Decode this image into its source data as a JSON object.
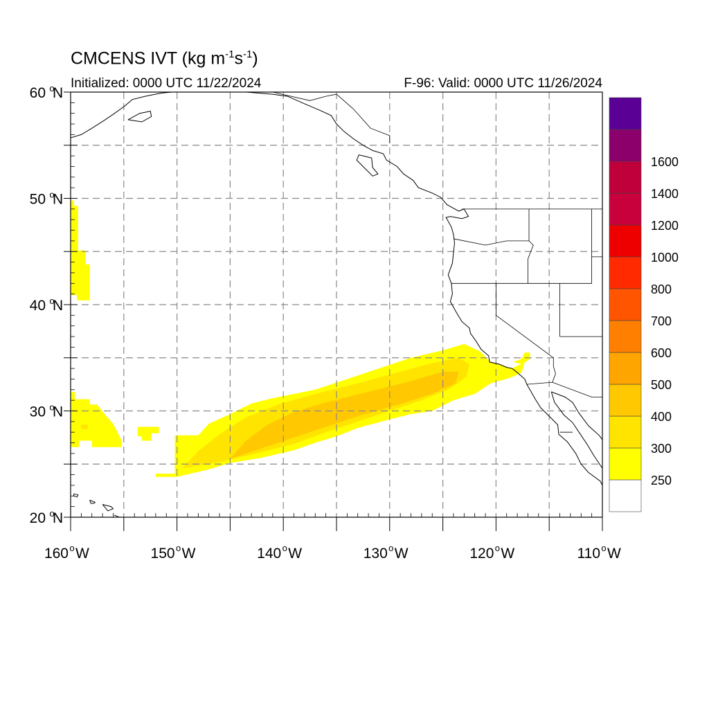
{
  "title_main": "CMCENS IVT (kg m",
  "title_exp1": "-1",
  "title_mid": "s",
  "title_exp2": "-1",
  "title_end": ")",
  "initialized": "Initialized: 0000 UTC 11/22/2024",
  "valid": "F-96: Valid: 0000 UTC 11/26/2024",
  "lat_labels": [
    {
      "deg": "60",
      "hem": "N"
    },
    {
      "deg": "50",
      "hem": "N"
    },
    {
      "deg": "40",
      "hem": "N"
    },
    {
      "deg": "30",
      "hem": "N"
    },
    {
      "deg": "20",
      "hem": "N"
    }
  ],
  "lon_labels": [
    {
      "deg": "160",
      "hem": "W"
    },
    {
      "deg": "150",
      "hem": "W"
    },
    {
      "deg": "140",
      "hem": "W"
    },
    {
      "deg": "130",
      "hem": "W"
    },
    {
      "deg": "120",
      "hem": "W"
    },
    {
      "deg": "110",
      "hem": "W"
    }
  ],
  "map_extent": {
    "lon_min": -160,
    "lon_max": -110,
    "lat_min": 20,
    "lat_max": 60
  },
  "grid": {
    "lon_step": 5,
    "lat_step": 5,
    "style": "dashed"
  },
  "colorbar": {
    "bins": [
      {
        "color": "#ffffff"
      },
      {
        "color": "#ffff00",
        "label": "250"
      },
      {
        "color": "#ffe400",
        "label": "300"
      },
      {
        "color": "#ffc800",
        "label": "400"
      },
      {
        "color": "#ffa500",
        "label": "500"
      },
      {
        "color": "#ff8000",
        "label": "600"
      },
      {
        "color": "#ff5500",
        "label": "700"
      },
      {
        "color": "#ff2a00",
        "label": "800"
      },
      {
        "color": "#ee0000",
        "label": "1000"
      },
      {
        "color": "#c8003c",
        "label": "1200"
      },
      {
        "color": "#c0003a",
        "label": "1400"
      },
      {
        "color": "#8b006b",
        "label": "1600"
      },
      {
        "color": "#5b0095"
      }
    ]
  },
  "ivt_regions": [
    {
      "name": "atmospheric-river-250",
      "level": 250,
      "color": "#ffff00",
      "polygon": [
        [
          -152.0,
          24.1
        ],
        [
          -150.2,
          24.1
        ],
        [
          -150.2,
          27.7
        ],
        [
          -148.0,
          27.7
        ],
        [
          -147.0,
          28.8
        ],
        [
          -145.0,
          29.7
        ],
        [
          -143.0,
          30.7
        ],
        [
          -141.0,
          31.2
        ],
        [
          -137.0,
          32.0
        ],
        [
          -134.0,
          33.0
        ],
        [
          -131.0,
          34.0
        ],
        [
          -128.0,
          35.0
        ],
        [
          -125.0,
          35.7
        ],
        [
          -123.0,
          36.3
        ],
        [
          -121.5,
          35.6
        ],
        [
          -120.5,
          34.6
        ],
        [
          -118.5,
          34.0
        ],
        [
          -117.3,
          34.6
        ],
        [
          -117.6,
          33.6
        ],
        [
          -118.7,
          33.1
        ],
        [
          -120.5,
          32.6
        ],
        [
          -122.0,
          31.6
        ],
        [
          -124.0,
          31.0
        ],
        [
          -126.0,
          30.0
        ],
        [
          -128.0,
          29.7
        ],
        [
          -130.0,
          29.2
        ],
        [
          -133.0,
          28.4
        ],
        [
          -135.0,
          27.6
        ],
        [
          -137.0,
          27.0
        ],
        [
          -139.0,
          26.3
        ],
        [
          -142.0,
          25.6
        ],
        [
          -145.0,
          25.1
        ],
        [
          -147.0,
          24.5
        ],
        [
          -150.0,
          23.8
        ],
        [
          -152.0,
          23.8
        ]
      ]
    },
    {
      "name": "atmospheric-river-300",
      "level": 300,
      "color": "#ffe400",
      "polygon": [
        [
          -149.5,
          24.6
        ],
        [
          -148.0,
          26.2
        ],
        [
          -146.0,
          27.8
        ],
        [
          -143.5,
          29.4
        ],
        [
          -140.5,
          30.6
        ],
        [
          -137.0,
          31.6
        ],
        [
          -133.0,
          32.6
        ],
        [
          -129.0,
          33.7
        ],
        [
          -126.0,
          34.5
        ],
        [
          -123.5,
          35.0
        ],
        [
          -122.5,
          34.4
        ],
        [
          -122.8,
          33.2
        ],
        [
          -124.5,
          32.0
        ],
        [
          -127.0,
          31.0
        ],
        [
          -130.0,
          30.0
        ],
        [
          -133.0,
          29.0
        ],
        [
          -136.0,
          28.0
        ],
        [
          -139.0,
          26.9
        ],
        [
          -142.5,
          26.0
        ],
        [
          -146.0,
          25.2
        ],
        [
          -149.5,
          24.6
        ]
      ]
    },
    {
      "name": "atmospheric-river-400",
      "level": 400,
      "color": "#ffc800",
      "polygon": [
        [
          -145.0,
          25.5
        ],
        [
          -143.5,
          27.2
        ],
        [
          -141.5,
          28.7
        ],
        [
          -139.0,
          29.9
        ],
        [
          -136.0,
          30.8
        ],
        [
          -132.0,
          31.8
        ],
        [
          -128.0,
          32.8
        ],
        [
          -125.0,
          33.7
        ],
        [
          -123.5,
          33.7
        ],
        [
          -123.8,
          32.6
        ],
        [
          -126.0,
          31.6
        ],
        [
          -129.5,
          30.5
        ],
        [
          -133.0,
          29.5
        ],
        [
          -136.0,
          28.5
        ],
        [
          -139.0,
          27.5
        ],
        [
          -142.0,
          26.5
        ],
        [
          -145.0,
          25.5
        ]
      ]
    },
    {
      "name": "coastal-patch-250",
      "level": 250,
      "color": "#ffff00",
      "polygon": [
        [
          -118.4,
          34.6
        ],
        [
          -117.6,
          34.9
        ],
        [
          -117.3,
          35.5
        ],
        [
          -116.8,
          35.5
        ],
        [
          -116.8,
          34.9
        ],
        [
          -117.5,
          34.4
        ],
        [
          -118.4,
          34.6
        ]
      ]
    },
    {
      "name": "north-patch-250",
      "level": 250,
      "color": "#ffff00",
      "polygon": [
        [
          -160.0,
          40.9
        ],
        [
          -159.4,
          40.9
        ],
        [
          -159.4,
          40.4
        ],
        [
          -158.2,
          40.4
        ],
        [
          -158.2,
          43.8
        ],
        [
          -158.6,
          43.8
        ],
        [
          -158.6,
          45.1
        ],
        [
          -159.3,
          45.1
        ],
        [
          -159.3,
          49.3
        ],
        [
          -159.7,
          49.3
        ],
        [
          -159.7,
          49.8
        ],
        [
          -160.0,
          49.8
        ]
      ]
    },
    {
      "name": "west-patch-250",
      "level": 250,
      "color": "#ffff00",
      "polygon": [
        [
          -160.0,
          26.6
        ],
        [
          -159.2,
          26.6
        ],
        [
          -159.2,
          27.2
        ],
        [
          -158.0,
          27.2
        ],
        [
          -158.0,
          26.6
        ],
        [
          -155.2,
          26.6
        ],
        [
          -155.2,
          27.2
        ],
        [
          -156.0,
          28.8
        ],
        [
          -156.8,
          29.7
        ],
        [
          -157.5,
          30.6
        ],
        [
          -158.2,
          30.6
        ],
        [
          -158.2,
          31.1
        ],
        [
          -159.6,
          31.1
        ],
        [
          -159.6,
          31.8
        ],
        [
          -160.0,
          31.8
        ]
      ]
    },
    {
      "name": "west-patch-300",
      "level": 300,
      "color": "#ffe400",
      "polygon": [
        [
          -159.0,
          28.3
        ],
        [
          -158.4,
          28.3
        ],
        [
          -158.4,
          28.7
        ],
        [
          -159.0,
          28.7
        ]
      ]
    },
    {
      "name": "small-patch-250",
      "level": 250,
      "color": "#ffff00",
      "polygon": [
        [
          -153.7,
          27.9
        ],
        [
          -153.7,
          28.5
        ],
        [
          -151.7,
          28.5
        ],
        [
          -151.7,
          27.9
        ],
        [
          -152.4,
          27.9
        ],
        [
          -152.4,
          27.2
        ],
        [
          -153.3,
          27.2
        ],
        [
          -153.3,
          27.6
        ],
        [
          -153.7,
          27.6
        ]
      ]
    }
  ],
  "coastlines": [
    {
      "name": "north-america-coast",
      "points": [
        [
          -153.0,
          59.6
        ],
        [
          -151.5,
          59.9
        ],
        [
          -150.5,
          60.0
        ],
        [
          -148.5,
          60.0
        ],
        [
          -147.0,
          60.0
        ],
        [
          -145.5,
          60.0
        ],
        [
          -143.5,
          60.0
        ],
        [
          -141.0,
          59.8
        ],
        [
          -139.6,
          59.6
        ],
        [
          -138.0,
          58.9
        ],
        [
          -136.6,
          58.3
        ],
        [
          -135.5,
          57.8
        ],
        [
          -135.0,
          57.0
        ],
        [
          -134.3,
          56.3
        ],
        [
          -133.4,
          55.6
        ],
        [
          -132.5,
          55.0
        ],
        [
          -131.6,
          54.5
        ],
        [
          -130.6,
          54.2
        ],
        [
          -130.3,
          53.6
        ],
        [
          -129.3,
          53.0
        ],
        [
          -128.7,
          52.3
        ],
        [
          -127.8,
          51.7
        ],
        [
          -127.3,
          51.0
        ],
        [
          -126.0,
          50.5
        ],
        [
          -125.2,
          50.1
        ],
        [
          -124.6,
          49.4
        ],
        [
          -123.5,
          48.8
        ],
        [
          -123.0,
          49.0
        ],
        [
          -122.6,
          48.3
        ],
        [
          -123.2,
          48.1
        ],
        [
          -124.3,
          48.3
        ],
        [
          -124.7,
          48.2
        ],
        [
          -124.2,
          47.3
        ],
        [
          -124.0,
          46.6
        ],
        [
          -123.9,
          45.8
        ],
        [
          -124.0,
          44.9
        ],
        [
          -124.1,
          43.9
        ],
        [
          -124.5,
          42.8
        ],
        [
          -124.2,
          42.0
        ],
        [
          -124.1,
          41.0
        ],
        [
          -124.3,
          40.3
        ],
        [
          -123.8,
          39.4
        ],
        [
          -123.2,
          38.4
        ],
        [
          -122.5,
          37.8
        ],
        [
          -122.4,
          37.3
        ],
        [
          -121.9,
          36.6
        ],
        [
          -121.4,
          35.8
        ],
        [
          -120.7,
          35.2
        ],
        [
          -120.6,
          34.6
        ],
        [
          -119.7,
          34.4
        ],
        [
          -119.0,
          34.1
        ],
        [
          -118.5,
          34.0
        ],
        [
          -118.1,
          33.7
        ],
        [
          -117.3,
          33.0
        ],
        [
          -117.1,
          32.5
        ],
        [
          -116.7,
          31.8
        ],
        [
          -116.3,
          31.1
        ],
        [
          -115.8,
          30.3
        ],
        [
          -115.1,
          29.6
        ],
        [
          -114.2,
          28.7
        ],
        [
          -114.1,
          27.8
        ],
        [
          -113.3,
          27.1
        ],
        [
          -112.5,
          26.0
        ],
        [
          -112.0,
          25.0
        ],
        [
          -111.3,
          24.2
        ],
        [
          -110.2,
          23.4
        ],
        [
          -110.0,
          23.0
        ]
      ]
    },
    {
      "name": "gulf-of-california-coast",
      "points": [
        [
          -114.8,
          31.8
        ],
        [
          -114.5,
          30.8
        ],
        [
          -113.6,
          29.6
        ],
        [
          -112.8,
          28.9
        ],
        [
          -112.2,
          28.0
        ],
        [
          -111.4,
          26.8
        ],
        [
          -110.8,
          25.8
        ],
        [
          -110.0,
          24.6
        ]
      ]
    },
    {
      "name": "mainland-mexico-coast",
      "points": [
        [
          -114.8,
          31.8
        ],
        [
          -113.5,
          31.3
        ],
        [
          -112.8,
          30.8
        ],
        [
          -112.2,
          29.8
        ],
        [
          -111.3,
          28.6
        ],
        [
          -110.3,
          27.7
        ],
        [
          -110.0,
          27.3
        ]
      ]
    },
    {
      "name": "alaska-peninsula-coast",
      "points": [
        [
          -160.0,
          55.7
        ],
        [
          -159.0,
          56.0
        ],
        [
          -158.0,
          56.6
        ],
        [
          -156.9,
          57.3
        ],
        [
          -156.0,
          57.9
        ],
        [
          -154.9,
          58.7
        ],
        [
          -154.2,
          59.3
        ],
        [
          -153.0,
          59.6
        ]
      ]
    },
    {
      "name": "kodiak-island",
      "points": [
        [
          -154.6,
          57.4
        ],
        [
          -153.3,
          57.2
        ],
        [
          -152.4,
          57.7
        ],
        [
          -152.5,
          58.2
        ],
        [
          -153.5,
          58.0
        ],
        [
          -154.6,
          57.4
        ]
      ]
    },
    {
      "name": "haida-gwaii",
      "points": [
        [
          -132.9,
          54.1
        ],
        [
          -131.7,
          53.8
        ],
        [
          -131.6,
          52.9
        ],
        [
          -131.1,
          52.3
        ],
        [
          -131.6,
          52.1
        ],
        [
          -132.4,
          52.9
        ],
        [
          -133.1,
          53.6
        ],
        [
          -132.9,
          54.1
        ]
      ]
    },
    {
      "name": "hawaii-islands",
      "points": [
        [
          -159.7,
          22.2
        ],
        [
          -159.3,
          22.1
        ],
        [
          -159.4,
          21.9
        ],
        [
          -159.7,
          22.0
        ],
        [
          -159.7,
          22.2
        ]
      ]
    },
    {
      "name": "oahu",
      "points": [
        [
          -158.2,
          21.6
        ],
        [
          -157.7,
          21.4
        ],
        [
          -157.8,
          21.3
        ],
        [
          -158.1,
          21.3
        ],
        [
          -158.2,
          21.6
        ]
      ]
    },
    {
      "name": "maui",
      "points": [
        [
          -157.0,
          21.2
        ],
        [
          -156.2,
          21.0
        ],
        [
          -156.0,
          20.8
        ],
        [
          -156.5,
          20.6
        ],
        [
          -157.0,
          21.2
        ]
      ]
    },
    {
      "name": "big-island",
      "points": [
        [
          -155.9,
          20.2
        ],
        [
          -155.2,
          19.9
        ],
        [
          -155.0,
          19.6
        ]
      ]
    }
  ],
  "boundaries": [
    {
      "name": "us-canada-border",
      "points": [
        [
          -123.2,
          49.0
        ],
        [
          -110.0,
          49.0
        ]
      ]
    },
    {
      "name": "alaska-bc-border",
      "points": [
        [
          -141.0,
          60.0
        ],
        [
          -137.5,
          59.2
        ],
        [
          -136.0,
          59.6
        ],
        [
          -135.0,
          59.8
        ],
        [
          -133.4,
          58.4
        ],
        [
          -131.8,
          56.6
        ],
        [
          -130.0,
          55.9
        ],
        [
          -130.0,
          55.2
        ]
      ]
    },
    {
      "name": "or-wa-border",
      "points": [
        [
          -124.0,
          46.2
        ],
        [
          -121.0,
          45.6
        ],
        [
          -119.0,
          46.0
        ],
        [
          -116.9,
          46.0
        ],
        [
          -116.9,
          49.0
        ]
      ]
    },
    {
      "name": "ca-or-border",
      "points": [
        [
          -124.2,
          42.0
        ],
        [
          -111.0,
          42.0
        ],
        [
          -111.0,
          44.5
        ],
        [
          -110.0,
          44.5
        ]
      ]
    },
    {
      "name": "or-id-border",
      "points": [
        [
          -116.9,
          46.0
        ],
        [
          -116.5,
          45.6
        ],
        [
          -117.0,
          44.3
        ],
        [
          -117.0,
          42.0
        ]
      ]
    },
    {
      "name": "ca-nv-border",
      "points": [
        [
          -120.0,
          42.0
        ],
        [
          -120.0,
          39.0
        ],
        [
          -114.6,
          35.0
        ]
      ]
    },
    {
      "name": "nv-ut-border",
      "points": [
        [
          -114.0,
          42.0
        ],
        [
          -114.0,
          37.0
        ]
      ]
    },
    {
      "name": "ut-az-border",
      "points": [
        [
          -114.0,
          37.0
        ],
        [
          -110.0,
          37.0
        ]
      ]
    },
    {
      "name": "us-mexico-border",
      "points": [
        [
          -117.1,
          32.5
        ],
        [
          -114.7,
          32.7
        ],
        [
          -111.0,
          31.3
        ],
        [
          -110.0,
          31.3
        ]
      ]
    },
    {
      "name": "ca-az-border",
      "points": [
        [
          -114.6,
          35.0
        ],
        [
          -114.6,
          34.2
        ],
        [
          -114.4,
          33.5
        ],
        [
          -114.7,
          32.7
        ]
      ]
    },
    {
      "name": "baja-border",
      "points": [
        [
          -114.0,
          28.0
        ],
        [
          -112.8,
          28.0
        ]
      ]
    },
    {
      "name": "idaho-montana-border",
      "points": [
        [
          -111.0,
          49.0
        ],
        [
          -111.0,
          44.5
        ]
      ]
    }
  ]
}
